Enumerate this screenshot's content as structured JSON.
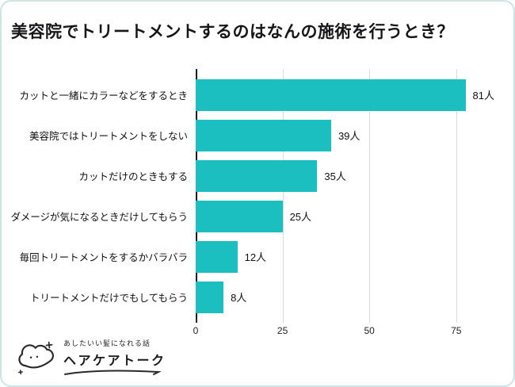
{
  "page": {
    "title": "美容院でトリートメントするのはなんの施術を行うとき？"
  },
  "chart_data": {
    "type": "bar",
    "orientation": "horizontal",
    "title": "美容院でトリートメントするのはなんの施術を行うとき？",
    "categories": [
      "カットと一緒にカラーなどをするとき",
      "美容院ではトリートメントをしない",
      "カットだけのときもする",
      "ダメージが気になるときだけしてもらう",
      "毎回トリートメントをするかバラバラ",
      "トリートメントだけでもしてもらう"
    ],
    "values": [
      81,
      39,
      35,
      25,
      12,
      8
    ],
    "value_labels": [
      "81人",
      "39人",
      "35人",
      "25人",
      "12人",
      "8人"
    ],
    "x_ticks": [
      0,
      25,
      50,
      75
    ],
    "xlim": [
      0,
      86
    ],
    "bar_color": "#1cbfbf",
    "grid": true,
    "legend": "none"
  },
  "colors": {
    "card_border": "#cfe3e3",
    "gridline": "#d9d9d9",
    "axis_line": "#1a1a1a"
  },
  "logo": {
    "tagline": "あしたいい髪になれる話",
    "name": "ヘアケアトーク"
  }
}
